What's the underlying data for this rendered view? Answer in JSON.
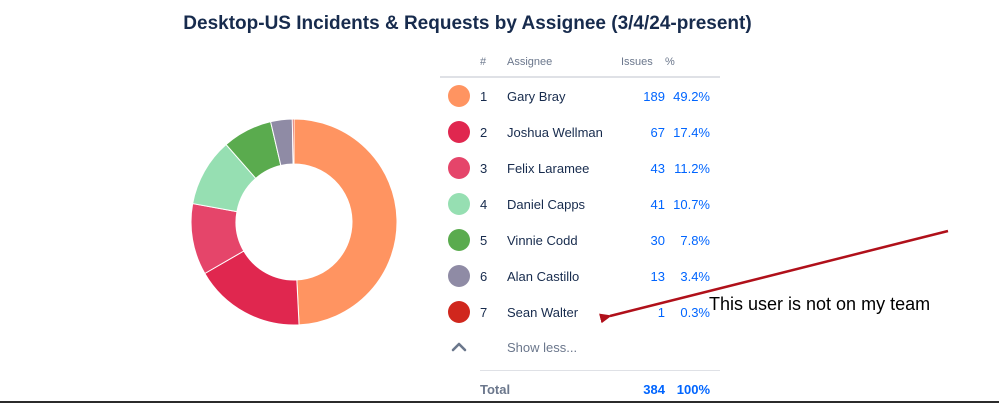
{
  "title": "Desktop-US Incidents & Requests by Assignee (3/4/24-present)",
  "headers": {
    "num": "#",
    "assignee": "Assignee",
    "issues": "Issues",
    "pct": "%"
  },
  "rows": [
    {
      "num": "1",
      "name": "Gary Bray",
      "issues": "189",
      "pct": "49.2%",
      "color": "#ff9461"
    },
    {
      "num": "2",
      "name": "Joshua Wellman",
      "issues": "67",
      "pct": "17.4%",
      "color": "#e0274f"
    },
    {
      "num": "3",
      "name": "Felix Laramee",
      "issues": "43",
      "pct": "11.2%",
      "color": "#e5456a"
    },
    {
      "num": "4",
      "name": "Daniel Capps",
      "issues": "41",
      "pct": "10.7%",
      "color": "#96dfb2"
    },
    {
      "num": "5",
      "name": "Vinnie Codd",
      "issues": "30",
      "pct": "7.8%",
      "color": "#5aab4e"
    },
    {
      "num": "6",
      "name": "Alan Castillo",
      "issues": "13",
      "pct": "3.4%",
      "color": "#8f8ba5"
    },
    {
      "num": "7",
      "name": "Sean Walter",
      "issues": "1",
      "pct": "0.3%",
      "color": "#d0271d"
    }
  ],
  "show_less": "Show less...",
  "total": {
    "label": "Total",
    "issues": "384",
    "pct": "100%"
  },
  "annotation": "This user is not on my team",
  "chart_data": {
    "type": "pie",
    "donut": true,
    "title": "Desktop-US Incidents & Requests by Assignee (3/4/24-present)",
    "categories": [
      "Gary Bray",
      "Joshua Wellman",
      "Felix Laramee",
      "Daniel Capps",
      "Vinnie Codd",
      "Alan Castillo",
      "Sean Walter"
    ],
    "values": [
      189,
      67,
      43,
      41,
      30,
      13,
      1
    ],
    "percentages": [
      49.2,
      17.4,
      11.2,
      10.7,
      7.8,
      3.4,
      0.3
    ],
    "total": 384
  }
}
